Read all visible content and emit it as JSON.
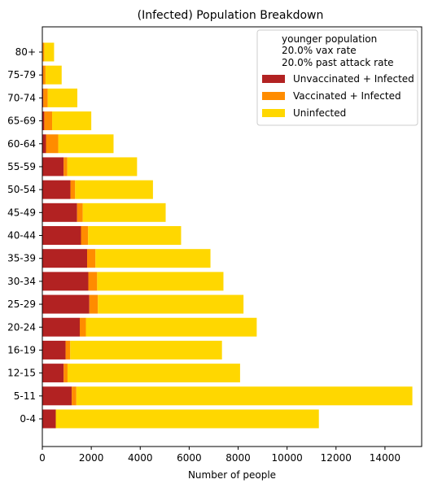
{
  "chart_data": {
    "type": "bar",
    "orientation": "horizontal",
    "stacked": true,
    "title": "(Infected) Population Breakdown",
    "xlabel": "Number of people",
    "ylabel": "",
    "xlim": [
      0,
      15500
    ],
    "xticks": [
      0,
      2000,
      4000,
      6000,
      8000,
      10000,
      12000,
      14000
    ],
    "categories": [
      "0-4",
      "5-11",
      "12-15",
      "16-19",
      "20-24",
      "25-29",
      "30-34",
      "35-39",
      "40-44",
      "45-49",
      "50-54",
      "55-59",
      "60-64",
      "65-69",
      "70-74",
      "75-79",
      "80+"
    ],
    "series": [
      {
        "name": "Unvaccinated + Infected",
        "color": "#b22222",
        "values": [
          550,
          1200,
          870,
          950,
          1530,
          1920,
          1880,
          1830,
          1580,
          1420,
          1150,
          870,
          150,
          80,
          40,
          30,
          20
        ]
      },
      {
        "name": "Vaccinated + Infected",
        "color": "#ff8c00",
        "values": [
          0,
          190,
          160,
          190,
          250,
          350,
          360,
          340,
          290,
          230,
          190,
          150,
          500,
          320,
          180,
          100,
          60
        ]
      },
      {
        "name": "Uninfected",
        "color": "#ffd700",
        "values": [
          10750,
          13730,
          7050,
          6200,
          6980,
          5950,
          5160,
          4700,
          3800,
          3390,
          3180,
          2850,
          2260,
          1600,
          1210,
          660,
          400
        ]
      }
    ],
    "legend": {
      "placement": "top-right",
      "header_lines": [
        "younger population",
        "20.0% vax rate",
        "20.0% past attack rate"
      ]
    },
    "grid": false
  }
}
